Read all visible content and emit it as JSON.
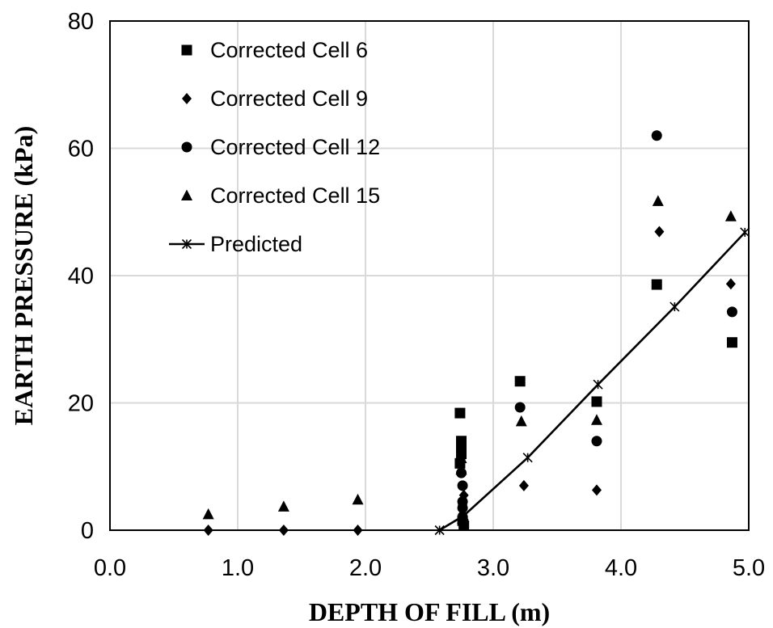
{
  "chart_data": {
    "type": "scatter",
    "title": "",
    "xlabel": "DEPTH OF FILL (m)",
    "ylabel": "EARTH PRESSURE (kPa)",
    "xlim": [
      0,
      5
    ],
    "ylim": [
      0,
      80
    ],
    "x_ticks": [
      "0.0",
      "1.0",
      "2.0",
      "3.0",
      "4.0",
      "5.0"
    ],
    "y_ticks": [
      "0",
      "20",
      "40",
      "60",
      "80"
    ],
    "grid": true,
    "legend_position": "top-left",
    "series": [
      {
        "name": "Corrected Cell 6",
        "marker": "square",
        "points": [
          [
            2.74,
            18.4
          ],
          [
            2.75,
            14.0
          ],
          [
            2.75,
            13.0
          ],
          [
            2.75,
            12.0
          ],
          [
            2.74,
            10.5
          ],
          [
            2.76,
            1.5
          ],
          [
            2.77,
            0.7
          ],
          [
            3.21,
            23.4
          ],
          [
            3.81,
            20.2
          ],
          [
            4.28,
            38.6
          ],
          [
            4.87,
            29.5
          ]
        ]
      },
      {
        "name": "Corrected Cell 9",
        "marker": "diamond",
        "points": [
          [
            0.77,
            0.0
          ],
          [
            1.36,
            0.0
          ],
          [
            1.94,
            0.0
          ],
          [
            2.77,
            5.5
          ],
          [
            2.76,
            4.0
          ],
          [
            2.76,
            2.5
          ],
          [
            3.24,
            7.0
          ],
          [
            3.81,
            6.3
          ],
          [
            4.3,
            46.9
          ],
          [
            4.86,
            38.7
          ]
        ]
      },
      {
        "name": "Corrected Cell 12",
        "marker": "circle",
        "points": [
          [
            2.75,
            9.0
          ],
          [
            2.76,
            7.0
          ],
          [
            2.76,
            4.5
          ],
          [
            2.76,
            3.5
          ],
          [
            2.76,
            2.0
          ],
          [
            3.21,
            19.3
          ],
          [
            3.81,
            14.0
          ],
          [
            4.28,
            62.0
          ],
          [
            4.87,
            34.3
          ]
        ]
      },
      {
        "name": "Corrected Cell 15",
        "marker": "triangle",
        "points": [
          [
            0.77,
            2.5
          ],
          [
            1.36,
            3.7
          ],
          [
            1.94,
            4.8
          ],
          [
            2.75,
            11.3
          ],
          [
            2.75,
            9.5
          ],
          [
            2.76,
            1.8
          ],
          [
            3.22,
            17.1
          ],
          [
            3.81,
            17.3
          ],
          [
            4.29,
            51.7
          ],
          [
            4.86,
            49.3
          ]
        ]
      },
      {
        "name": "Predicted",
        "marker": "asterisk-line",
        "points": [
          [
            2.58,
            0.0
          ],
          [
            2.77,
            2.3
          ],
          [
            3.27,
            11.4
          ],
          [
            3.82,
            22.9
          ],
          [
            4.42,
            35.1
          ],
          [
            4.97,
            46.8
          ]
        ]
      }
    ]
  }
}
